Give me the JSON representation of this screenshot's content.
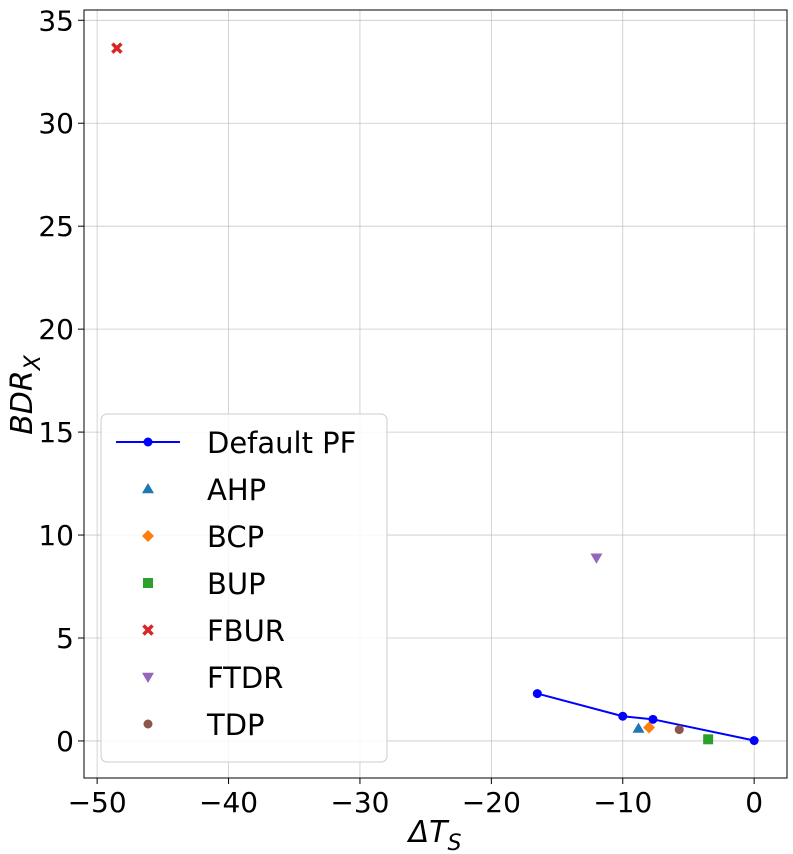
{
  "chart_data": {
    "type": "scatter",
    "xlabel_main": "ΔT",
    "xlabel_sub": "S",
    "ylabel_main": "BDR",
    "ylabel_sub": "X",
    "xlim": [
      -51,
      2.5
    ],
    "ylim": [
      -1.8,
      35.5
    ],
    "xticks": [
      -50,
      -40,
      -30,
      -20,
      -10,
      0
    ],
    "xtick_labels": [
      "−50",
      "−40",
      "−30",
      "−20",
      "−10",
      "0"
    ],
    "yticks": [
      0,
      5,
      10,
      15,
      20,
      25,
      30,
      35
    ],
    "ytick_labels": [
      "0",
      "5",
      "10",
      "15",
      "20",
      "25",
      "30",
      "35"
    ],
    "grid": true,
    "legend_position": "lower-left",
    "series": [
      {
        "name": "Default PF",
        "kind": "line",
        "marker": "circle",
        "color": "#0000ff",
        "points": [
          [
            -16.5,
            2.3
          ],
          [
            -10,
            1.2
          ],
          [
            -7.7,
            1.05
          ],
          [
            0,
            0.02
          ]
        ]
      },
      {
        "name": "AHP",
        "kind": "scatter",
        "marker": "triangle-up",
        "color": "#1f77b4",
        "points": [
          [
            -8.8,
            0.6
          ]
        ]
      },
      {
        "name": "BCP",
        "kind": "scatter",
        "marker": "diamond",
        "color": "#ff7f0e",
        "points": [
          [
            -8.0,
            0.65
          ]
        ]
      },
      {
        "name": "BUP",
        "kind": "scatter",
        "marker": "square",
        "color": "#2ca02c",
        "points": [
          [
            -3.5,
            0.08
          ]
        ]
      },
      {
        "name": "FBUR",
        "kind": "scatter",
        "marker": "x",
        "color": "#d62728",
        "points": [
          [
            -48.5,
            33.65
          ]
        ]
      },
      {
        "name": "FTDR",
        "kind": "scatter",
        "marker": "triangle-down",
        "color": "#9467bd",
        "points": [
          [
            -12,
            8.9
          ]
        ]
      },
      {
        "name": "TDP",
        "kind": "scatter",
        "marker": "circle",
        "color": "#8c564b",
        "points": [
          [
            -5.7,
            0.55
          ]
        ]
      }
    ]
  }
}
